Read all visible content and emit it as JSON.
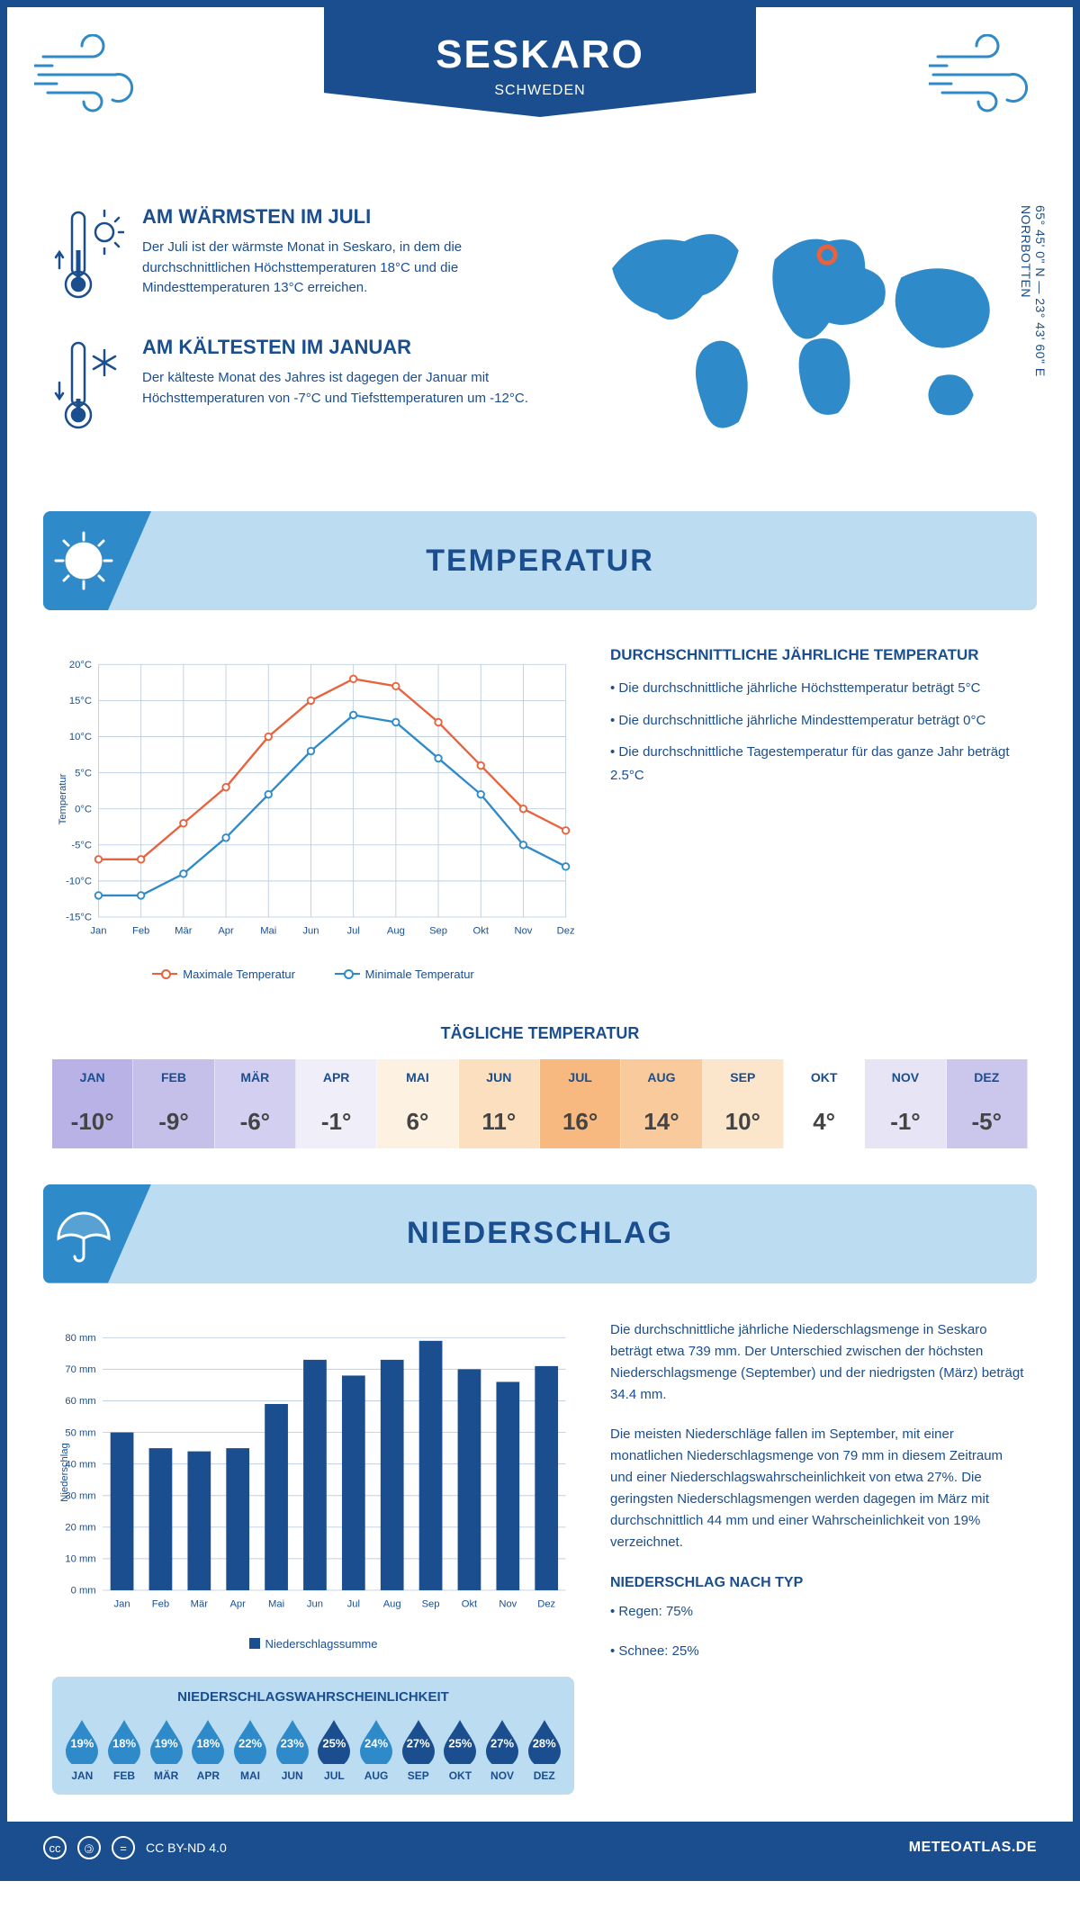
{
  "header": {
    "title": "SESKARO",
    "subtitle": "SCHWEDEN"
  },
  "coords": "65° 45' 0\" N — 23° 43' 60\" E\nNORRBOTTEN",
  "warmest": {
    "title": "AM WÄRMSTEN IM JULI",
    "text": "Der Juli ist der wärmste Monat in Seskaro, in dem die durchschnittlichen Höchsttemperaturen 18°C und die Mindesttemperaturen 13°C erreichen."
  },
  "coldest": {
    "title": "AM KÄLTESTEN IM JANUAR",
    "text": "Der kälteste Monat des Jahres ist dagegen der Januar mit Höchsttemperaturen von -7°C und Tiefsttemperaturen um -12°C."
  },
  "temp_section_title": "TEMPERATUR",
  "temp_chart": {
    "type": "line",
    "months": [
      "Jan",
      "Feb",
      "Mär",
      "Apr",
      "Mai",
      "Jun",
      "Jul",
      "Aug",
      "Sep",
      "Okt",
      "Nov",
      "Dez"
    ],
    "max_temp": [
      -7,
      -7,
      -2,
      3,
      10,
      15,
      18,
      17,
      12,
      6,
      0,
      -3
    ],
    "min_temp": [
      -12,
      -12,
      -9,
      -4,
      2,
      8,
      13,
      12,
      7,
      2,
      -5,
      -8
    ],
    "ylim": [
      -15,
      20
    ],
    "ytick_step": 5,
    "max_color": "#e8623d",
    "min_color": "#2f8ac9",
    "grid_color": "#bfcfe0",
    "background": "#ffffff",
    "legend_max": "Maximale Temperatur",
    "legend_min": "Minimale Temperatur",
    "y_title": "Temperatur"
  },
  "temp_text": {
    "heading": "DURCHSCHNITTLICHE JÄHRLICHE TEMPERATUR",
    "b1": "• Die durchschnittliche jährliche Höchsttemperatur beträgt 5°C",
    "b2": "• Die durchschnittliche jährliche Mindesttemperatur beträgt 0°C",
    "b3": "• Die durchschnittliche Tagestemperatur für das ganze Jahr beträgt 2.5°C"
  },
  "daily_title": "TÄGLICHE TEMPERATUR",
  "daily_table": {
    "months": [
      "JAN",
      "FEB",
      "MÄR",
      "APR",
      "MAI",
      "JUN",
      "JUL",
      "AUG",
      "SEP",
      "OKT",
      "NOV",
      "DEZ"
    ],
    "values": [
      "-10°",
      "-9°",
      "-6°",
      "-1°",
      "6°",
      "11°",
      "16°",
      "14°",
      "10°",
      "4°",
      "-1°",
      "-5°"
    ],
    "colors": [
      "#b8b2e6",
      "#c5c0ea",
      "#d3cff0",
      "#efeef9",
      "#fdf2e2",
      "#fcdfbf",
      "#f7b97f",
      "#f9ca9c",
      "#fce6cb",
      "#ffffff",
      "#e6e4f5",
      "#cbc6ec"
    ]
  },
  "precip_section_title": "NIEDERSCHLAG",
  "precip_chart": {
    "type": "bar",
    "months": [
      "Jan",
      "Feb",
      "Mär",
      "Apr",
      "Mai",
      "Jun",
      "Jul",
      "Aug",
      "Sep",
      "Okt",
      "Nov",
      "Dez"
    ],
    "values": [
      50,
      45,
      44,
      45,
      59,
      73,
      68,
      73,
      79,
      70,
      66,
      71
    ],
    "ylim": [
      0,
      80
    ],
    "ytick_step": 10,
    "bar_color": "#1a4e8e",
    "grid_color": "#bfcfe0",
    "y_title": "Niederschlag",
    "y_unit": "mm",
    "legend": "Niederschlagssumme"
  },
  "precip_text": {
    "p1": "Die durchschnittliche jährliche Niederschlagsmenge in Seskaro beträgt etwa 739 mm. Der Unterschied zwischen der höchsten Niederschlagsmenge (September) und der niedrigsten (März) beträgt 34.4 mm.",
    "p2": "Die meisten Niederschläge fallen im September, mit einer monatlichen Niederschlagsmenge von 79 mm in diesem Zeitraum und einer Niederschlagswahrscheinlichkeit von etwa 27%. Die geringsten Niederschlagsmengen werden dagegen im März mit durchschnittlich 44 mm und einer Wahrscheinlichkeit von 19% verzeichnet.",
    "type_heading": "NIEDERSCHLAG NACH TYP",
    "type1": "• Regen: 75%",
    "type2": "• Schnee: 25%"
  },
  "prob": {
    "title": "NIEDERSCHLAGSWAHRSCHEINLICHKEIT",
    "months": [
      "JAN",
      "FEB",
      "MÄR",
      "APR",
      "MAI",
      "JUN",
      "JUL",
      "AUG",
      "SEP",
      "OKT",
      "NOV",
      "DEZ"
    ],
    "values": [
      "19%",
      "18%",
      "19%",
      "18%",
      "22%",
      "23%",
      "25%",
      "24%",
      "27%",
      "25%",
      "27%",
      "28%"
    ],
    "colors": [
      "#2f8ac9",
      "#2f8ac9",
      "#2f8ac9",
      "#2f8ac9",
      "#2f8ac9",
      "#2f8ac9",
      "#1a4e8e",
      "#2f8ac9",
      "#1a4e8e",
      "#1a4e8e",
      "#1a4e8e",
      "#1a4e8e"
    ]
  },
  "footer": {
    "license": "CC BY-ND 4.0",
    "brand": "METEOATLAS.DE"
  }
}
